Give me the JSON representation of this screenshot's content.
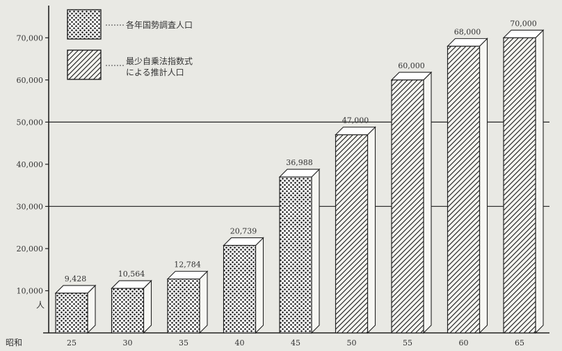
{
  "chart_data": {
    "type": "bar",
    "era_label": "昭和",
    "y_unit": "人",
    "categories": [
      "25",
      "30",
      "35",
      "40",
      "45",
      "50",
      "55",
      "60",
      "65"
    ],
    "values": [
      9428,
      10564,
      12784,
      20739,
      36988,
      47000,
      60000,
      68000,
      70000
    ],
    "value_labels": [
      "9,428",
      "10,564",
      "12,784",
      "20,739",
      "36,988",
      "47,000",
      "60,000",
      "68,000",
      "70,000"
    ],
    "bar_series": [
      0,
      0,
      0,
      0,
      0,
      1,
      1,
      1,
      1
    ],
    "series": [
      {
        "name": "各年国勢調査人口",
        "pattern": "dots"
      },
      {
        "name": "最少自乗法指数式による推計人口",
        "name_lines": [
          "最少自乗法指数式",
          "による推計人口"
        ],
        "pattern": "hatch"
      }
    ],
    "yticks": [
      {
        "value": 10000,
        "label": "10,000"
      },
      {
        "value": 20000,
        "label": "20,000"
      },
      {
        "value": 30000,
        "label": "30,000"
      },
      {
        "value": 40000,
        "label": "40,000"
      },
      {
        "value": 50000,
        "label": "50,000"
      },
      {
        "value": 60000,
        "label": "60,000"
      },
      {
        "value": 70000,
        "label": "70,000"
      }
    ],
    "ylim": [
      0,
      75000
    ],
    "reference_lines": [
      30000,
      50000
    ],
    "legend_position": "top-left"
  }
}
